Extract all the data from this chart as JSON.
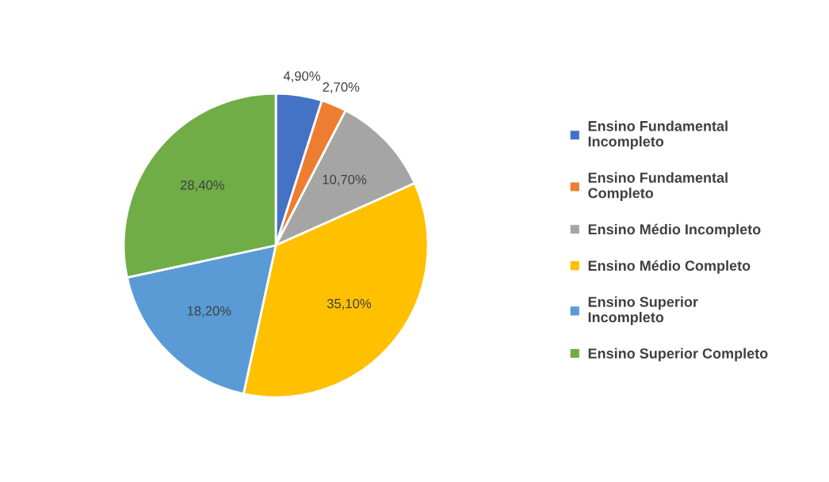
{
  "chart_data": {
    "type": "pie",
    "categories": [
      "Ensino Fundamental Incompleto",
      "Ensino Fundamental Completo",
      "Ensino Médio Incompleto",
      "Ensino Médio Completo",
      "Ensino Superior Incompleto",
      "Ensino Superior Completo"
    ],
    "values": [
      4.9,
      2.7,
      10.7,
      35.1,
      18.2,
      28.4
    ],
    "value_labels": [
      "4,90%",
      "2,70%",
      "10,70%",
      "35,10%",
      "18,20%",
      "28,40%"
    ],
    "colors": [
      "#4472c4",
      "#ed7d31",
      "#a5a5a5",
      "#ffc000",
      "#5b9bd5",
      "#70ad47"
    ],
    "legend": "right"
  }
}
